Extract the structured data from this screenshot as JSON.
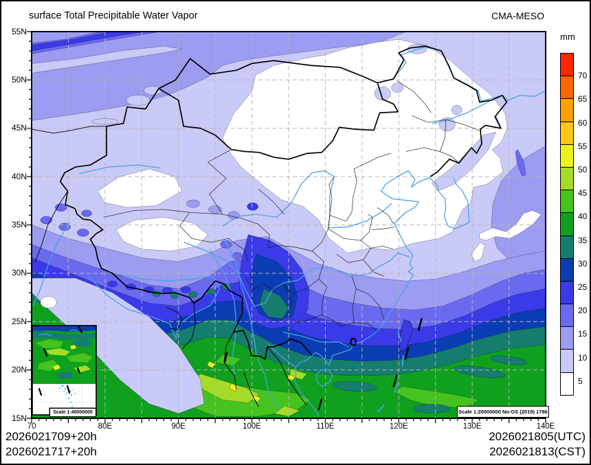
{
  "header": {
    "title": "surface Total Precipitable Water Vapor",
    "model": "CMA-MESO"
  },
  "colorbar": {
    "unit": "mm",
    "labels": [
      "70",
      "65",
      "60",
      "55",
      "50",
      "45",
      "40",
      "35",
      "30",
      "25",
      "20",
      "15",
      "10",
      "5"
    ],
    "colors": [
      "#ffffff",
      "#cacaf8",
      "#9c9cf2",
      "#6a6af0",
      "#3a3ae8",
      "#0a3cb4",
      "#157d6e",
      "#0fa01e",
      "#46c31e",
      "#a4dc28",
      "#f0f01e",
      "#ffc814",
      "#ffa000",
      "#ff6400",
      "#ff2800"
    ]
  },
  "axes": {
    "lat": [
      "55N",
      "50N",
      "45N",
      "40N",
      "35N",
      "30N",
      "25N",
      "20N",
      "15N"
    ],
    "lon": [
      "70",
      "80E",
      "90E",
      "100E",
      "110E",
      "120E",
      "130E",
      "140E"
    ]
  },
  "map": {
    "scale_label": "Scale 1:20000000 No:GS (2019) 1786",
    "inset_scale_label": "Scale 1:40000000"
  },
  "footer": {
    "left_line1": "2026021709+20h",
    "left_line2": "2026021717+20h",
    "right_line1": "2026021805(UTC)",
    "right_line2": "2026021813(CST)"
  }
}
